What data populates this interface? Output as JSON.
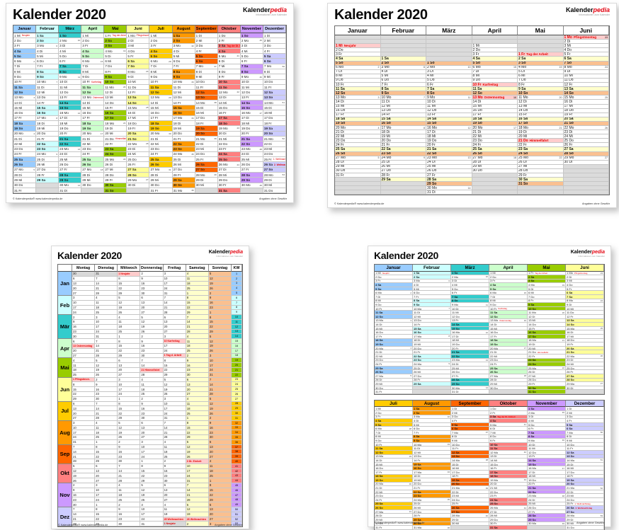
{
  "page": {
    "background": "#FFFFFF"
  },
  "branding": {
    "logo_black": "Kalender",
    "logo_accent": "pedia",
    "logo_sub": "Informationen zum Kalender",
    "accent_color": "#E30613"
  },
  "common": {
    "title": "Kalender 2020",
    "footer_left": "© Kalenderpedia®   www.kalenderpedia.de",
    "footer_right": "Angaben ohne Gewähr",
    "kw_label": "KW",
    "weekday_abbrs": [
      "Mo",
      "Di",
      "Mi",
      "Do",
      "Fr",
      "Sa",
      "So"
    ],
    "weekday_names": [
      "Montag",
      "Dienstag",
      "Mittwoch",
      "Donnerstag",
      "Freitag",
      "Samstag",
      "Sonntag"
    ]
  },
  "year": {
    "label": "2020",
    "months": [
      {
        "name": "Januar",
        "short": "Jan",
        "days": 31,
        "start": 2,
        "color": "#99CCFF"
      },
      {
        "name": "Februar",
        "short": "Feb",
        "days": 29,
        "start": 5,
        "color": "#CCFFFF"
      },
      {
        "name": "März",
        "short": "Mär",
        "days": 31,
        "start": 6,
        "color": "#33CCCC"
      },
      {
        "name": "April",
        "short": "Apr",
        "days": 30,
        "start": 2,
        "color": "#CCFFCC"
      },
      {
        "name": "Mai",
        "short": "Mai",
        "days": 31,
        "start": 4,
        "color": "#99CC00"
      },
      {
        "name": "Juni",
        "short": "Jun",
        "days": 30,
        "start": 0,
        "color": "#FFFF99"
      },
      {
        "name": "Juli",
        "short": "Jul",
        "days": 31,
        "start": 2,
        "color": "#FFCC00"
      },
      {
        "name": "August",
        "short": "Aug",
        "days": 31,
        "start": 5,
        "color": "#FF9900"
      },
      {
        "name": "September",
        "short": "Sep",
        "days": 30,
        "start": 1,
        "color": "#FF6600"
      },
      {
        "name": "Oktober",
        "short": "Okt",
        "days": 31,
        "start": 3,
        "color": "#FF8080"
      },
      {
        "name": "November",
        "short": "Nov",
        "days": 30,
        "start": 6,
        "color": "#CC99FF"
      },
      {
        "name": "Dezember",
        "short": "Dez",
        "days": 31,
        "start": 1,
        "color": "#CCCCFF"
      }
    ],
    "holidays": [
      {
        "month": 1,
        "day": 1,
        "name": "Neujahr",
        "abbr": "Neujahr"
      },
      {
        "month": 4,
        "day": 10,
        "name": "Karfreitag",
        "abbr": "Karfreitag"
      },
      {
        "month": 4,
        "day": 13,
        "name": "Ostermontag",
        "abbr": "Ostermontag"
      },
      {
        "month": 5,
        "day": 1,
        "name": "Tag der Arbeit",
        "abbr": "Tag d. Arbeit"
      },
      {
        "month": 5,
        "day": 21,
        "name": "Himmelfahrt",
        "abbr": "Himmelfahrt"
      },
      {
        "month": 6,
        "day": 1,
        "name": "Pfingstmontag",
        "abbr": "Pfingstmon."
      },
      {
        "month": 10,
        "day": 3,
        "name": "Tag der Dt. Einheit",
        "abbr": "Dt. Einheit"
      },
      {
        "month": 12,
        "day": 25,
        "name": "1. Weihnachtstag",
        "abbr": "Weihnachten"
      },
      {
        "month": 12,
        "day": 26,
        "name": "2. Weihnachtstag",
        "abbr": "Weihnachten"
      }
    ],
    "boundary": {
      "prev_december_days": [
        30,
        31
      ],
      "next_january_days": [
        1,
        2,
        3
      ],
      "next_january_holiday": "Neujahr"
    },
    "colors": {
      "saturday": "#FFFFCC",
      "sunday": "#FAC090",
      "holiday_bg": "#FFCCCC",
      "holiday_text": "#E30000",
      "filler": "#DBDBDB",
      "other_year": "#D9D9D9"
    }
  }
}
